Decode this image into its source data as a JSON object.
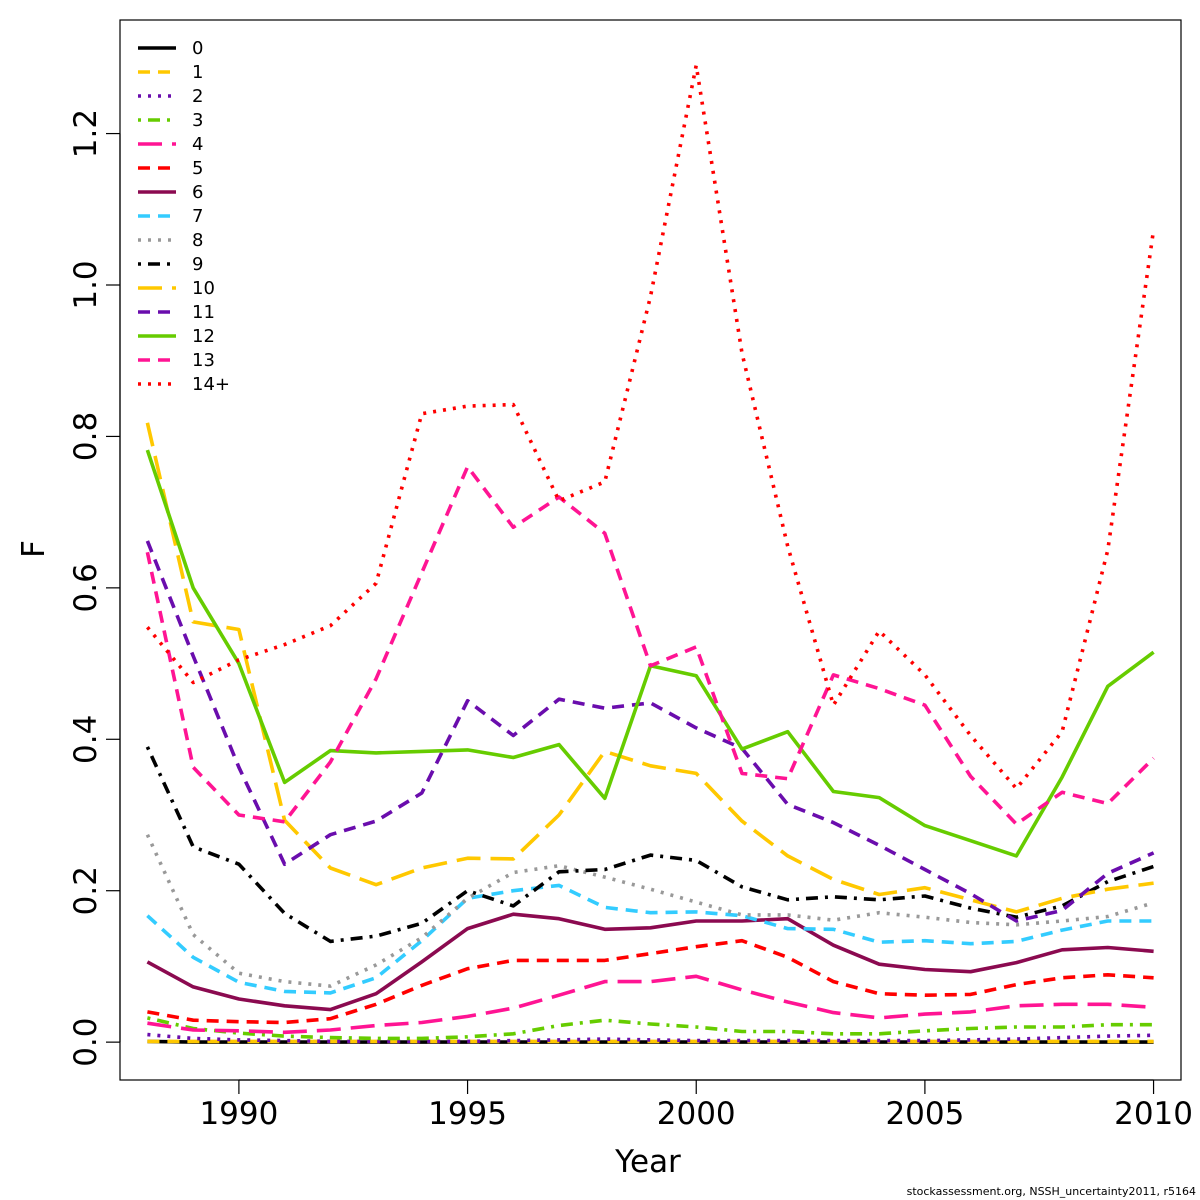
{
  "footer": {
    "credit": "stockassessment.org, NSSH_uncertainty2011, r5164"
  },
  "chart_data": {
    "type": "line",
    "xlabel": "Year",
    "ylabel": "F",
    "xlim": [
      1987.4,
      2010.6
    ],
    "ylim": [
      -0.05,
      1.35
    ],
    "xticks": [
      1990,
      1995,
      2000,
      2005,
      2010
    ],
    "yticks": [
      0.0,
      0.2,
      0.4,
      0.6,
      0.8,
      1.0,
      1.2
    ],
    "ytick_labels": [
      "0.0",
      "0.2",
      "0.4",
      "0.6",
      "0.8",
      "1.0",
      "1.2"
    ],
    "grid": false,
    "legend_position": "top-left",
    "x": [
      1988,
      1989,
      1990,
      1991,
      1992,
      1993,
      1994,
      1995,
      1996,
      1997,
      1998,
      1999,
      2000,
      2001,
      2002,
      2003,
      2004,
      2005,
      2006,
      2007,
      2008,
      2009,
      2010
    ],
    "series": [
      {
        "name": "0",
        "color": "#000000",
        "dash": "solid",
        "values": [
          0.001,
          0.0,
          0.0,
          0.0,
          0.0,
          0.0,
          0.0,
          0.0,
          0.0,
          0.0,
          0.0,
          0.0,
          0.0,
          0.0,
          0.0,
          0.0,
          0.0,
          0.0,
          0.0,
          0.0,
          0.0,
          0.0,
          0.0
        ]
      },
      {
        "name": "1",
        "color": "#FFC800",
        "dash": "dashed",
        "values": [
          0.001,
          0.001,
          0.001,
          0.001,
          0.001,
          0.001,
          0.001,
          0.001,
          0.001,
          0.001,
          0.001,
          0.001,
          0.001,
          0.001,
          0.001,
          0.001,
          0.001,
          0.001,
          0.001,
          0.001,
          0.001,
          0.001,
          0.001
        ]
      },
      {
        "name": "2",
        "color": "#6A0DAD",
        "dash": "dotted",
        "values": [
          0.01,
          0.005,
          0.003,
          0.002,
          0.001,
          0.001,
          0.001,
          0.001,
          0.002,
          0.003,
          0.004,
          0.003,
          0.002,
          0.002,
          0.002,
          0.002,
          0.002,
          0.002,
          0.003,
          0.004,
          0.006,
          0.008,
          0.009
        ]
      },
      {
        "name": "3",
        "color": "#66CC00",
        "dash": "dotdash",
        "values": [
          0.032,
          0.018,
          0.012,
          0.008,
          0.006,
          0.005,
          0.005,
          0.007,
          0.011,
          0.022,
          0.029,
          0.024,
          0.02,
          0.014,
          0.014,
          0.011,
          0.011,
          0.015,
          0.018,
          0.02,
          0.02,
          0.023,
          0.023
        ]
      },
      {
        "name": "4",
        "color": "#FF1493",
        "dash": "longdash",
        "values": [
          0.025,
          0.016,
          0.015,
          0.013,
          0.016,
          0.022,
          0.026,
          0.034,
          0.045,
          0.062,
          0.08,
          0.08,
          0.087,
          0.069,
          0.053,
          0.039,
          0.032,
          0.037,
          0.04,
          0.048,
          0.05,
          0.05,
          0.046
        ]
      },
      {
        "name": "5",
        "color": "#FF0000",
        "dash": "dashed",
        "values": [
          0.04,
          0.029,
          0.027,
          0.026,
          0.031,
          0.05,
          0.075,
          0.097,
          0.108,
          0.108,
          0.108,
          0.117,
          0.126,
          0.134,
          0.112,
          0.08,
          0.064,
          0.062,
          0.063,
          0.076,
          0.085,
          0.089,
          0.085
        ]
      },
      {
        "name": "6",
        "color": "#8B0A50",
        "dash": "solid",
        "values": [
          0.106,
          0.073,
          0.057,
          0.048,
          0.043,
          0.064,
          0.106,
          0.15,
          0.169,
          0.163,
          0.149,
          0.151,
          0.16,
          0.16,
          0.163,
          0.128,
          0.103,
          0.096,
          0.093,
          0.105,
          0.122,
          0.125,
          0.12
        ]
      },
      {
        "name": "7",
        "color": "#33CCFF",
        "dash": "dashed",
        "values": [
          0.167,
          0.112,
          0.079,
          0.067,
          0.065,
          0.085,
          0.134,
          0.19,
          0.2,
          0.207,
          0.178,
          0.171,
          0.172,
          0.167,
          0.15,
          0.149,
          0.132,
          0.134,
          0.13,
          0.133,
          0.148,
          0.16,
          0.16
        ]
      },
      {
        "name": "8",
        "color": "#999999",
        "dash": "dotted",
        "values": [
          0.274,
          0.142,
          0.091,
          0.08,
          0.074,
          0.102,
          0.138,
          0.19,
          0.224,
          0.233,
          0.218,
          0.202,
          0.185,
          0.168,
          0.168,
          0.161,
          0.171,
          0.165,
          0.158,
          0.155,
          0.16,
          0.166,
          0.184
        ]
      },
      {
        "name": "9",
        "color": "#000000",
        "dash": "dotdash",
        "values": [
          0.39,
          0.258,
          0.235,
          0.17,
          0.133,
          0.14,
          0.157,
          0.2,
          0.18,
          0.225,
          0.228,
          0.247,
          0.24,
          0.205,
          0.188,
          0.192,
          0.188,
          0.193,
          0.177,
          0.165,
          0.18,
          0.212,
          0.232
        ]
      },
      {
        "name": "10",
        "color": "#FFC800",
        "dash": "longdash",
        "values": [
          0.818,
          0.555,
          0.545,
          0.293,
          0.23,
          0.208,
          0.23,
          0.243,
          0.242,
          0.3,
          0.384,
          0.365,
          0.355,
          0.292,
          0.246,
          0.215,
          0.195,
          0.204,
          0.188,
          0.172,
          0.19,
          0.202,
          0.21
        ]
      },
      {
        "name": "11",
        "color": "#6A0DAD",
        "dash": "dashed",
        "values": [
          0.662,
          0.51,
          0.363,
          0.235,
          0.274,
          0.292,
          0.329,
          0.451,
          0.405,
          0.453,
          0.441,
          0.448,
          0.415,
          0.388,
          0.314,
          0.29,
          0.26,
          0.228,
          0.196,
          0.16,
          0.174,
          0.223,
          0.25
        ]
      },
      {
        "name": "12",
        "color": "#66CC00",
        "dash": "solid",
        "values": [
          0.782,
          0.6,
          0.5,
          0.343,
          0.385,
          0.382,
          0.384,
          0.386,
          0.376,
          0.393,
          0.322,
          0.497,
          0.484,
          0.387,
          0.41,
          0.331,
          0.323,
          0.286,
          0.266,
          0.246,
          0.35,
          0.47,
          0.515
        ]
      },
      {
        "name": "13",
        "color": "#FF1493",
        "dash": "dashed",
        "values": [
          0.647,
          0.363,
          0.3,
          0.291,
          0.37,
          0.48,
          0.62,
          0.76,
          0.68,
          0.72,
          0.672,
          0.497,
          0.522,
          0.355,
          0.348,
          0.485,
          0.467,
          0.445,
          0.351,
          0.288,
          0.33,
          0.315,
          0.375
        ]
      },
      {
        "name": "14+",
        "color": "#FF0000",
        "dash": "dotted",
        "values": [
          0.548,
          0.475,
          0.505,
          0.525,
          0.55,
          0.606,
          0.83,
          0.84,
          0.842,
          0.715,
          0.74,
          0.985,
          1.29,
          0.91,
          0.655,
          0.445,
          0.543,
          0.485,
          0.405,
          0.335,
          0.41,
          0.65,
          1.073
        ]
      }
    ]
  }
}
